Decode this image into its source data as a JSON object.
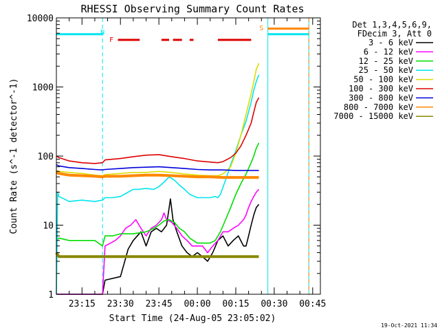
{
  "colors": {
    "3-6": "#000000",
    "6-12": "#ff00ff",
    "12-25": "#00dd00",
    "25-50": "#00e5ee",
    "50-100": "#dddd00",
    "100-300": "#dd0000",
    "300-800": "#0000dd",
    "800-7000": "#ff8800",
    "7000-15000": "#888800",
    "frame": "#000000"
  },
  "chart_data": {
    "type": "line",
    "title": "RHESSI Observing Summary Count Rates",
    "xlabel": "Start Time (24-Aug-05 23:05:02)",
    "ylabel": "Count Rate (s^-1 detector^-1)",
    "ylog": true,
    "ylim": [
      1,
      10000
    ],
    "xlim_minutes": [
      0,
      103
    ],
    "x_tick_labels": [
      "23:15",
      "23:30",
      "23:45",
      "00:00",
      "00:15",
      "00:30",
      "00:45"
    ],
    "x_tick_minutes": [
      10,
      25,
      40,
      55,
      70,
      85,
      100
    ],
    "y_tick_labels": [
      "1",
      "10",
      "100",
      "1000",
      "10000"
    ],
    "y_tick_values": [
      1,
      10,
      100,
      1000,
      10000
    ],
    "legend_header": [
      "Det 1,3,4,5,6,9,",
      "FDecim 3, Att 0"
    ],
    "legend_position": "right",
    "footer": "19-Oct-2021 11:34",
    "annotations": [
      {
        "text": "N",
        "x": 18,
        "color": "#00e5ee"
      },
      {
        "text": "F",
        "x": 21.5,
        "color": "#dd0000"
      },
      {
        "text": "S",
        "x": 80,
        "color": "#ff8800"
      }
    ],
    "flare_bars": [
      [
        24,
        32.5
      ],
      [
        41,
        44
      ],
      [
        45.5,
        49
      ],
      [
        52,
        53.5
      ],
      [
        63,
        76
      ]
    ],
    "night_intervals": [
      [
        0,
        18
      ],
      [
        82.5,
        98.5
      ]
    ],
    "saa_interval": [
      82.5,
      98.5
    ],
    "series": [
      {
        "name": "3 - 6 keV",
        "color": "#000000",
        "x": [
          0,
          2,
          10,
          17,
          18,
          19,
          25,
          28,
          30,
          33,
          35,
          37,
          39,
          41,
          43,
          44.5,
          45.5,
          47,
          49,
          51,
          53,
          55,
          57,
          59,
          61,
          63,
          65,
          67,
          69,
          71,
          73,
          74,
          75,
          76,
          77,
          78,
          79
        ],
        "y": [
          1,
          1,
          1,
          1,
          1,
          1.6,
          1.8,
          4.5,
          6,
          8,
          5,
          8,
          9,
          8,
          10,
          24,
          12,
          8,
          5,
          4,
          3.5,
          4,
          3.5,
          3,
          4,
          6,
          7,
          5,
          6,
          7,
          5,
          5,
          7,
          10,
          14,
          18,
          20
        ]
      },
      {
        "name": "6 - 12 keV",
        "color": "#ff00ff",
        "x": [
          0,
          18,
          19,
          23,
          25,
          27,
          29,
          31,
          33,
          35,
          37,
          39,
          41,
          42,
          43,
          45,
          47,
          49,
          51,
          53,
          55,
          57,
          59,
          61,
          63,
          65,
          67,
          69,
          71,
          73,
          74,
          75,
          76,
          77,
          78,
          79
        ],
        "y": [
          1,
          1,
          5,
          6,
          7,
          9,
          10,
          12,
          9,
          7,
          9,
          10,
          12,
          15,
          12,
          11,
          9,
          7,
          6,
          5,
          5,
          5,
          4,
          5,
          6,
          8,
          8,
          9,
          10,
          12,
          14,
          18,
          22,
          26,
          30,
          33
        ]
      },
      {
        "name": "12 - 25 keV",
        "color": "#00dd00",
        "x": [
          0,
          1,
          5,
          10,
          15,
          18,
          19,
          22,
          25,
          30,
          35,
          38,
          40,
          42,
          44,
          46,
          48,
          50,
          52,
          55,
          58,
          60,
          62,
          64,
          66,
          68,
          70,
          72,
          74,
          76,
          77,
          78,
          79
        ],
        "y": [
          6,
          6.5,
          6,
          6,
          6,
          5,
          7,
          7,
          7.5,
          7.5,
          8,
          9,
          10,
          11.5,
          12,
          11,
          9,
          8,
          6.5,
          5.5,
          5.5,
          5.5,
          6,
          8,
          12,
          18,
          28,
          40,
          55,
          80,
          100,
          130,
          155
        ]
      },
      {
        "name": "25 - 50 keV",
        "color": "#00e5ee",
        "x": [
          0,
          0.5,
          1,
          3,
          5,
          10,
          15,
          18,
          19,
          22,
          25,
          28,
          30,
          32,
          35,
          38,
          40,
          42,
          44,
          46,
          48,
          50,
          52,
          55,
          58,
          60,
          62,
          63,
          64,
          66,
          68,
          70,
          72,
          74,
          76,
          77,
          78,
          79
        ],
        "y": [
          1,
          30,
          26,
          24,
          22,
          23,
          22,
          23,
          25,
          25,
          26,
          30,
          33,
          33,
          34,
          33,
          36,
          42,
          50,
          45,
          38,
          33,
          28,
          25,
          25,
          25,
          26,
          25,
          28,
          45,
          75,
          120,
          200,
          320,
          600,
          900,
          1200,
          1500
        ]
      },
      {
        "name": "50 - 100 keV",
        "color": "#dddd00",
        "x": [
          0,
          1,
          5,
          10,
          15,
          18,
          19,
          25,
          30,
          35,
          40,
          45,
          50,
          55,
          60,
          63,
          65,
          68,
          70,
          72,
          74,
          76,
          77,
          78,
          79
        ],
        "y": [
          62,
          60,
          58,
          56,
          53,
          52,
          54,
          56,
          58,
          58,
          60,
          58,
          55,
          53,
          52,
          52,
          55,
          70,
          110,
          200,
          400,
          800,
          1200,
          1800,
          2200
        ]
      },
      {
        "name": "100 - 300 keV",
        "color": "#dd0000",
        "x": [
          0,
          1,
          5,
          10,
          15,
          18,
          19,
          25,
          30,
          35,
          40,
          45,
          50,
          55,
          60,
          63,
          65,
          68,
          70,
          72,
          74,
          76,
          77,
          78,
          79
        ],
        "y": [
          100,
          95,
          85,
          80,
          78,
          80,
          88,
          92,
          98,
          103,
          105,
          98,
          92,
          85,
          82,
          80,
          83,
          95,
          110,
          140,
          200,
          300,
          430,
          600,
          700
        ]
      },
      {
        "name": "300 - 800 keV",
        "color": "#0000dd",
        "x": [
          0,
          1,
          5,
          10,
          15,
          18,
          19,
          25,
          30,
          35,
          40,
          45,
          50,
          55,
          60,
          65,
          70,
          75,
          79
        ],
        "y": [
          75,
          72,
          68,
          66,
          64,
          63,
          64,
          66,
          68,
          69,
          70,
          68,
          66,
          64,
          63,
          63,
          62,
          62,
          62
        ]
      },
      {
        "name": "800 - 7000 keV",
        "color": "#ff8800",
        "x": [
          0,
          1,
          5,
          10,
          15,
          18,
          19,
          25,
          30,
          35,
          40,
          45,
          50,
          55,
          60,
          65,
          70,
          75,
          79
        ],
        "y": [
          58,
          56,
          53,
          52,
          51,
          50,
          51,
          51,
          52,
          53,
          53,
          52,
          51,
          50,
          50,
          49,
          49,
          49,
          49
        ]
      },
      {
        "name": "7000 - 15000 keV",
        "color": "#888800",
        "x": [
          0,
          1,
          5,
          10,
          15,
          18,
          19,
          25,
          30,
          35,
          40,
          45,
          50,
          55,
          60,
          65,
          70,
          75,
          79
        ],
        "y": [
          4,
          3.5,
          3.5,
          3.5,
          3.5,
          3.5,
          3.5,
          3.5,
          3.5,
          3.5,
          3.5,
          3.5,
          3.5,
          3.5,
          3.5,
          3.5,
          3.5,
          3.5,
          3.5
        ]
      }
    ],
    "right_segment_levels": [
      {
        "series": "800 - 7000 keV",
        "x": [
          82.5,
          98.5
        ],
        "y": 7000
      },
      {
        "series": "25 - 50 keV",
        "x": [
          82.5,
          98.5
        ],
        "y": 5800
      },
      {
        "series": "25 - 50 keV",
        "x": [
          0,
          18
        ],
        "y": 5800
      }
    ]
  }
}
